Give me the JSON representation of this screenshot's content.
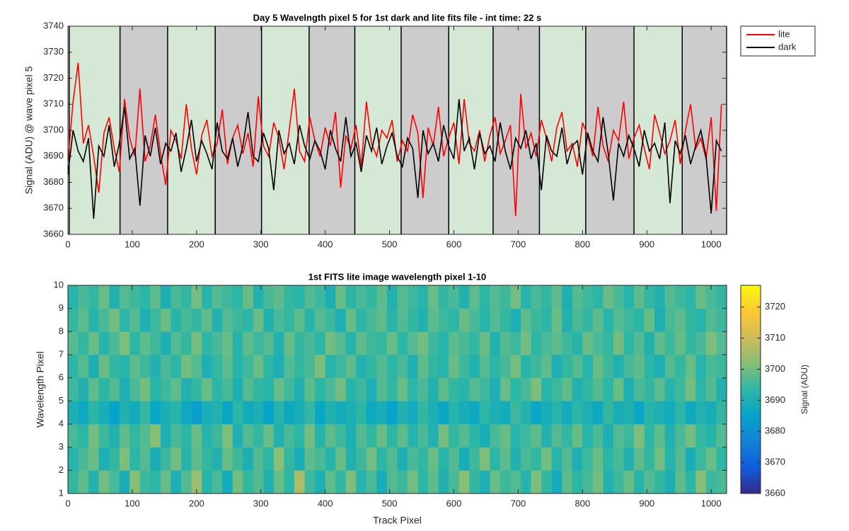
{
  "chart_data": [
    {
      "type": "line",
      "title": "Day 5 Wavelngth pixel 5 for 1st dark and lite fits file - int time: 22 s",
      "ylabel": "Signal (ADU) @ wave pixel 5",
      "x": [
        0,
        8,
        16,
        24,
        32,
        40,
        48,
        56,
        64,
        72,
        80,
        88,
        96,
        104,
        112,
        120,
        128,
        136,
        144,
        152,
        160,
        168,
        176,
        184,
        192,
        200,
        208,
        216,
        224,
        232,
        240,
        248,
        256,
        264,
        272,
        280,
        288,
        296,
        304,
        312,
        320,
        328,
        336,
        344,
        352,
        360,
        368,
        376,
        384,
        392,
        400,
        408,
        416,
        424,
        432,
        440,
        448,
        456,
        464,
        472,
        480,
        488,
        496,
        504,
        512,
        520,
        528,
        536,
        544,
        552,
        560,
        568,
        576,
        584,
        592,
        600,
        608,
        616,
        624,
        632,
        640,
        648,
        656,
        664,
        672,
        680,
        688,
        696,
        704,
        712,
        720,
        728,
        736,
        744,
        752,
        760,
        768,
        776,
        784,
        792,
        800,
        808,
        816,
        824,
        832,
        840,
        848,
        856,
        864,
        872,
        880,
        888,
        896,
        904,
        912,
        920,
        928,
        936,
        944,
        952,
        960,
        968,
        976,
        984,
        992,
        1000,
        1008,
        1016
      ],
      "series": [
        {
          "name": "lite",
          "color": "#ff0000",
          "values": [
            3688,
            3711,
            3726,
            3695,
            3702,
            3690,
            3676,
            3699,
            3705,
            3693,
            3684,
            3712,
            3697,
            3690,
            3716,
            3688,
            3694,
            3706,
            3691,
            3679,
            3700,
            3696,
            3689,
            3710,
            3693,
            3683,
            3698,
            3704,
            3690,
            3695,
            3708,
            3687,
            3697,
            3702,
            3691,
            3699,
            3686,
            3713,
            3694,
            3690,
            3703,
            3697,
            3685,
            3700,
            3716,
            3692,
            3688,
            3705,
            3696,
            3690,
            3701,
            3694,
            3707,
            3678,
            3698,
            3693,
            3702,
            3686,
            3711,
            3695,
            3690,
            3700,
            3697,
            3704,
            3688,
            3696,
            3692,
            3706,
            3699,
            3674,
            3701,
            3694,
            3709,
            3690,
            3697,
            3703,
            3687,
            3712,
            3695,
            3692,
            3700,
            3688,
            3698,
            3705,
            3691,
            3696,
            3702,
            3667,
            3714,
            3693,
            3699,
            3690,
            3704,
            3697,
            3688,
            3701,
            3707,
            3692,
            3695,
            3686,
            3703,
            3698,
            3690,
            3709,
            3694,
            3688,
            3700,
            3696,
            3711,
            3689,
            3697,
            3702,
            3693,
            3685,
            3706,
            3699,
            3691,
            3696,
            3704,
            3687,
            3700,
            3710,
            3693,
            3697,
            3689,
            3705,
            3669,
            3710
          ]
        },
        {
          "name": "dark",
          "color": "#000000",
          "values": [
            3683,
            3700,
            3692,
            3688,
            3697,
            3666,
            3694,
            3690,
            3702,
            3686,
            3695,
            3709,
            3689,
            3693,
            3671,
            3698,
            3690,
            3701,
            3687,
            3695,
            3692,
            3699,
            3684,
            3693,
            3704,
            3688,
            3696,
            3691,
            3685,
            3703,
            3692,
            3689,
            3697,
            3686,
            3694,
            3707,
            3690,
            3688,
            3699,
            3693,
            3677,
            3700,
            3691,
            3695,
            3687,
            3702,
            3694,
            3689,
            3696,
            3692,
            3685,
            3700,
            3693,
            3688,
            3705,
            3690,
            3695,
            3684,
            3698,
            3692,
            3701,
            3687,
            3694,
            3699,
            3690,
            3686,
            3697,
            3693,
            3674,
            3700,
            3691,
            3695,
            3688,
            3702,
            3694,
            3689,
            3712,
            3692,
            3697,
            3685,
            3699,
            3691,
            3694,
            3688,
            3703,
            3692,
            3685,
            3697,
            3693,
            3700,
            3689,
            3695,
            3677,
            3698,
            3692,
            3690,
            3701,
            3687,
            3694,
            3696,
            3683,
            3699,
            3692,
            3688,
            3705,
            3691,
            3673,
            3695,
            3690,
            3698,
            3693,
            3686,
            3700,
            3692,
            3695,
            3689,
            3703,
            3672,
            3696,
            3691,
            3698,
            3687,
            3694,
            3700,
            3690,
            3668,
            3696,
            3692
          ]
        }
      ],
      "band_edges": [
        2,
        81,
        155,
        229,
        301,
        375,
        446,
        518,
        592,
        661,
        733,
        805,
        880,
        955,
        1024
      ],
      "band_colors": [
        "#d5e8d6",
        "#cccccc"
      ],
      "xlim": [
        0,
        1024
      ],
      "ylim": [
        3660,
        3740
      ],
      "xticks": [
        0,
        100,
        200,
        300,
        400,
        500,
        600,
        700,
        800,
        900,
        1000
      ],
      "yticks": [
        3660,
        3670,
        3680,
        3690,
        3700,
        3710,
        3720,
        3730,
        3740
      ],
      "legend": "northeastoutside"
    },
    {
      "type": "heatmap",
      "title": "1st FITS lite image wavelength pixel 1-10",
      "xlabel": "Track Pixel",
      "ylabel": "Wavelength Pixel",
      "colorbar_label": "Signal (ADU)",
      "xbins": [
        0,
        16,
        32,
        48,
        64,
        80,
        96,
        112,
        128,
        144,
        160,
        176,
        192,
        208,
        224,
        240,
        256,
        272,
        288,
        304,
        320,
        336,
        352,
        368,
        384,
        400,
        416,
        432,
        448,
        464,
        480,
        496,
        512,
        528,
        544,
        560,
        576,
        592,
        608,
        624,
        640,
        656,
        672,
        688,
        704,
        720,
        736,
        752,
        768,
        784,
        800,
        816,
        832,
        848,
        864,
        880,
        896,
        912,
        928,
        944,
        960,
        976,
        992,
        1008,
        1024
      ],
      "ybins": [
        1,
        2,
        3,
        4,
        5,
        6,
        7,
        8,
        9,
        10
      ],
      "z": [
        [
          3694,
          3698,
          3691,
          3700,
          3696,
          3689,
          3702,
          3695,
          3693,
          3699,
          3690,
          3697,
          3704,
          3692,
          3696,
          3688,
          3700,
          3694,
          3697,
          3691,
          3699,
          3693,
          3706,
          3695,
          3690,
          3698,
          3694,
          3701,
          3692,
          3696,
          3689,
          3697,
          3695,
          3700,
          3693,
          3698,
          3691,
          3696,
          3702,
          3694,
          3690,
          3699,
          3695,
          3697,
          3692,
          3701,
          3694,
          3688,
          3698,
          3693,
          3696,
          3700,
          3691,
          3695,
          3699,
          3692,
          3697,
          3694,
          3690,
          3698,
          3693,
          3702,
          3695,
          3696
        ],
        [
          3692,
          3696,
          3699,
          3690,
          3694,
          3701,
          3693,
          3697,
          3689,
          3695,
          3700,
          3692,
          3698,
          3694,
          3691,
          3699,
          3695,
          3690,
          3697,
          3693,
          3702,
          3694,
          3689,
          3698,
          3696,
          3692,
          3699,
          3691,
          3695,
          3700,
          3693,
          3697,
          3690,
          3696,
          3694,
          3699,
          3692,
          3697,
          3689,
          3695,
          3701,
          3693,
          3698,
          3691,
          3696,
          3694,
          3700,
          3692,
          3697,
          3690,
          3695,
          3699,
          3693,
          3696,
          3691,
          3698,
          3694,
          3700,
          3692,
          3697,
          3689,
          3695,
          3699,
          3693
        ],
        [
          3696,
          3693,
          3700,
          3695,
          3691,
          3698,
          3694,
          3697,
          3702,
          3690,
          3696,
          3693,
          3699,
          3692,
          3695,
          3701,
          3690,
          3697,
          3694,
          3699,
          3691,
          3696,
          3693,
          3700,
          3692,
          3698,
          3695,
          3690,
          3697,
          3694,
          3699,
          3693,
          3698,
          3692,
          3696,
          3691,
          3700,
          3694,
          3697,
          3693,
          3689,
          3696,
          3699,
          3692,
          3695,
          3698,
          3691,
          3697,
          3694,
          3699,
          3692,
          3696,
          3690,
          3697,
          3695,
          3701,
          3693,
          3698,
          3691,
          3696,
          3700,
          3694,
          3692,
          3697
        ],
        [
          3690,
          3687,
          3693,
          3689,
          3685,
          3691,
          3688,
          3694,
          3686,
          3690,
          3692,
          3687,
          3684,
          3689,
          3691,
          3686,
          3693,
          3688,
          3690,
          3685,
          3692,
          3687,
          3689,
          3694,
          3686,
          3691,
          3688,
          3690,
          3693,
          3687,
          3689,
          3685,
          3691,
          3688,
          3694,
          3690,
          3686,
          3692,
          3689,
          3687,
          3693,
          3690,
          3688,
          3695,
          3691,
          3686,
          3689,
          3692,
          3688,
          3693,
          3690,
          3687,
          3694,
          3689,
          3691,
          3686,
          3692,
          3690,
          3688,
          3693,
          3687,
          3691,
          3689,
          3694
        ],
        [
          3695,
          3691,
          3698,
          3693,
          3697,
          3690,
          3696,
          3700,
          3692,
          3695,
          3698,
          3691,
          3694,
          3699,
          3693,
          3696,
          3690,
          3697,
          3694,
          3692,
          3699,
          3695,
          3691,
          3698,
          3693,
          3696,
          3700,
          3692,
          3695,
          3690,
          3697,
          3694,
          3699,
          3693,
          3696,
          3691,
          3698,
          3694,
          3692,
          3697,
          3695,
          3690,
          3699,
          3693,
          3696,
          3701,
          3692,
          3695,
          3698,
          3691,
          3694,
          3697,
          3693,
          3699,
          3690,
          3696,
          3694,
          3698,
          3692,
          3695,
          3700,
          3693,
          3697,
          3691
        ],
        [
          3693,
          3697,
          3690,
          3699,
          3694,
          3692,
          3698,
          3695,
          3691,
          3696,
          3693,
          3700,
          3697,
          3690,
          3694,
          3698,
          3692,
          3695,
          3699,
          3693,
          3690,
          3697,
          3694,
          3696,
          3701,
          3692,
          3695,
          3698,
          3691,
          3694,
          3697,
          3693,
          3696,
          3690,
          3698,
          3694,
          3692,
          3699,
          3695,
          3691,
          3697,
          3693,
          3696,
          3700,
          3692,
          3695,
          3698,
          3690,
          3694,
          3697,
          3692,
          3699,
          3695,
          3691,
          3696,
          3698,
          3693,
          3690,
          3697,
          3694,
          3699,
          3692,
          3696,
          3695
        ],
        [
          3697,
          3694,
          3699,
          3692,
          3696,
          3701,
          3693,
          3698,
          3695,
          3690,
          3697,
          3694,
          3700,
          3693,
          3696,
          3699,
          3692,
          3698,
          3695,
          3697,
          3691,
          3699,
          3694,
          3696,
          3693,
          3700,
          3697,
          3692,
          3698,
          3695,
          3694,
          3699,
          3693,
          3697,
          3700,
          3695,
          3692,
          3698,
          3696,
          3694,
          3699,
          3691,
          3697,
          3695,
          3700,
          3693,
          3696,
          3698,
          3695,
          3692,
          3699,
          3696,
          3694,
          3700,
          3693,
          3697,
          3691,
          3698,
          3695,
          3699,
          3694,
          3696,
          3701,
          3697
        ],
        [
          3694,
          3698,
          3692,
          3696,
          3700,
          3693,
          3697,
          3690,
          3695,
          3699,
          3692,
          3696,
          3694,
          3698,
          3691,
          3697,
          3695,
          3693,
          3699,
          3691,
          3696,
          3694,
          3698,
          3692,
          3697,
          3695,
          3690,
          3699,
          3693,
          3696,
          3698,
          3692,
          3697,
          3694,
          3691,
          3698,
          3695,
          3693,
          3699,
          3696,
          3692,
          3697,
          3694,
          3690,
          3698,
          3695,
          3693,
          3699,
          3691,
          3696,
          3694,
          3698,
          3692,
          3697,
          3695,
          3693,
          3699,
          3690,
          3696,
          3698,
          3694,
          3692,
          3697,
          3695
        ],
        [
          3692,
          3696,
          3694,
          3699,
          3691,
          3697,
          3695,
          3693,
          3698,
          3690,
          3696,
          3694,
          3700,
          3692,
          3697,
          3695,
          3693,
          3699,
          3691,
          3696,
          3698,
          3694,
          3692,
          3697,
          3695,
          3690,
          3699,
          3693,
          3696,
          3694,
          3698,
          3691,
          3697,
          3695,
          3692,
          3699,
          3694,
          3696,
          3691,
          3698,
          3693,
          3697,
          3695,
          3700,
          3692,
          3696,
          3694,
          3698,
          3690,
          3697,
          3695,
          3693,
          3699,
          3696,
          3692,
          3698,
          3694,
          3691,
          3697,
          3695,
          3693,
          3699,
          3696,
          3694
        ]
      ],
      "xlim": [
        0,
        1024
      ],
      "ylim": [
        1,
        10
      ],
      "xticks": [
        0,
        100,
        200,
        300,
        400,
        500,
        600,
        700,
        800,
        900,
        1000
      ],
      "yticks": [
        1,
        2,
        3,
        4,
        5,
        6,
        7,
        8,
        9,
        10
      ],
      "clim": [
        3660,
        3727
      ],
      "cticks": [
        3660,
        3670,
        3680,
        3690,
        3700,
        3710,
        3720
      ],
      "colormap": [
        "#352a87",
        "#0f5cdd",
        "#1481d6",
        "#06a4ca",
        "#2eb7a4",
        "#87bf77",
        "#d1bb59",
        "#fec832",
        "#f9fb0e"
      ]
    }
  ]
}
